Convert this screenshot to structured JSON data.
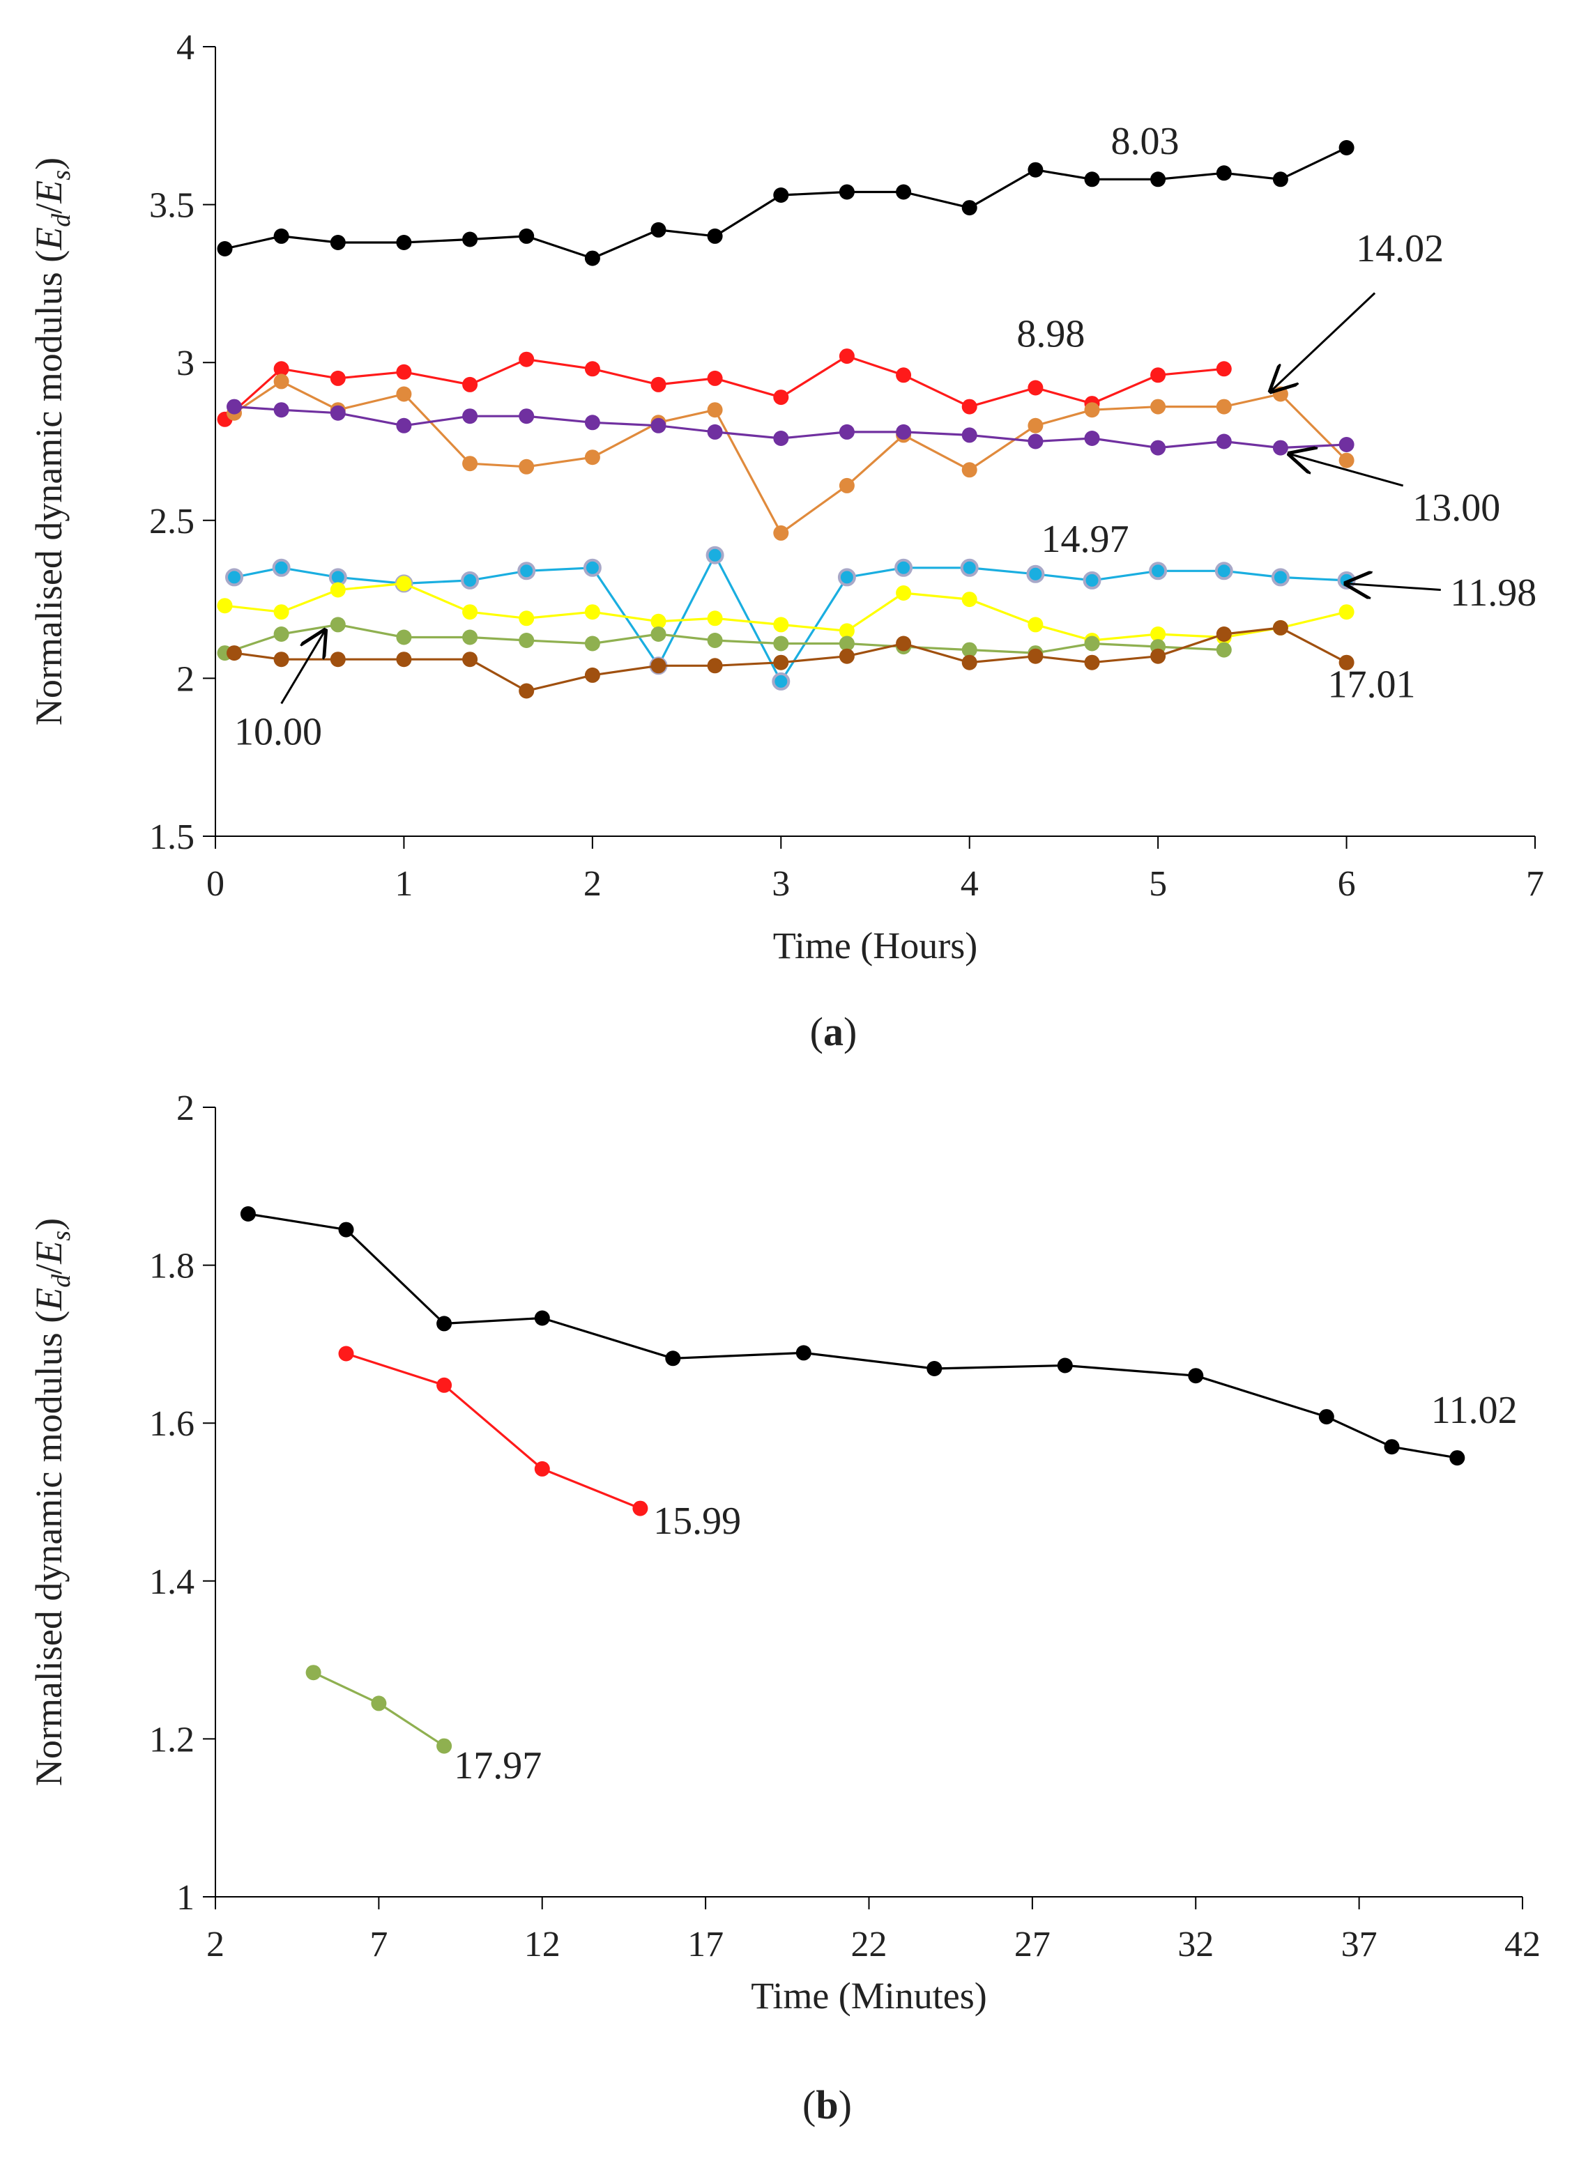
{
  "chart_data": [
    {
      "type": "line",
      "panel_label": "a",
      "xlabel": "Time (Hours)",
      "ylabel": "Normalised dynamic modulus (E_d/E_s)",
      "ylabel_parts": [
        "Normalised dynamic modulus (",
        "E",
        "d",
        "/",
        "E",
        "s",
        ")"
      ],
      "xlim": [
        0,
        7
      ],
      "ylim": [
        1.5,
        4
      ],
      "xticks": [
        0,
        1,
        2,
        3,
        4,
        5,
        6,
        7
      ],
      "yticks": [
        1.5,
        2,
        2.5,
        3,
        3.5,
        4
      ],
      "yticklabels": [
        "1.5",
        "2",
        "2.5",
        "3",
        "3.5",
        "4"
      ],
      "xticklabels": [
        "0",
        "1",
        "2",
        "3",
        "4",
        "5",
        "6",
        "7"
      ],
      "series": [
        {
          "name": "8.03",
          "color": "#000000",
          "x": [
            0.05,
            0.35,
            0.65,
            1.0,
            1.35,
            1.65,
            2.0,
            2.35,
            2.65,
            3.0,
            3.35,
            3.65,
            4.0,
            4.35,
            4.65,
            5.0,
            5.35,
            5.65,
            6.0
          ],
          "values": [
            3.36,
            3.4,
            3.38,
            3.38,
            3.39,
            3.4,
            3.33,
            3.42,
            3.4,
            3.53,
            3.54,
            3.54,
            3.49,
            3.61,
            3.58,
            3.58,
            3.6,
            3.58,
            3.68
          ]
        },
        {
          "name": "8.98",
          "color": "#ff1a1a",
          "x": [
            0.05,
            0.35,
            0.65,
            1.0,
            1.35,
            1.65,
            2.0,
            2.35,
            2.65,
            3.0,
            3.35,
            3.65,
            4.0,
            4.35,
            4.65,
            5.0,
            5.35
          ],
          "values": [
            2.82,
            2.98,
            2.95,
            2.97,
            2.93,
            3.01,
            2.98,
            2.93,
            2.95,
            2.89,
            3.02,
            2.96,
            2.86,
            2.92,
            2.87,
            2.96,
            2.98
          ]
        },
        {
          "name": "14.02",
          "color": "#e08a3c",
          "x": [
            0.1,
            0.35,
            0.65,
            1.0,
            1.35,
            1.65,
            2.0,
            2.35,
            2.65,
            3.0,
            3.35,
            3.65,
            4.0,
            4.35,
            4.65,
            5.0,
            5.35,
            5.65,
            6.0
          ],
          "values": [
            2.84,
            2.94,
            2.85,
            2.9,
            2.68,
            2.67,
            2.7,
            2.81,
            2.85,
            2.46,
            2.61,
            2.77,
            2.66,
            2.8,
            2.85,
            2.86,
            2.86,
            2.9,
            2.69
          ]
        },
        {
          "name": "13.00",
          "color": "#7030a0",
          "x": [
            0.1,
            0.35,
            0.65,
            1.0,
            1.35,
            1.65,
            2.0,
            2.35,
            2.65,
            3.0,
            3.35,
            3.65,
            4.0,
            4.35,
            4.65,
            5.0,
            5.35,
            5.65,
            6.0
          ],
          "values": [
            2.86,
            2.85,
            2.84,
            2.8,
            2.83,
            2.83,
            2.81,
            2.8,
            2.78,
            2.76,
            2.78,
            2.78,
            2.77,
            2.75,
            2.76,
            2.73,
            2.75,
            2.73,
            2.74
          ]
        },
        {
          "name": "14.97",
          "color": "#1aaee0",
          "marker_edge": "#a8a8c8",
          "x": [
            0.1,
            0.35,
            0.65,
            1.0,
            1.35,
            1.65,
            2.0,
            2.35,
            2.65,
            3.0,
            3.35,
            3.65,
            4.0,
            4.35,
            4.65,
            5.0,
            5.35,
            5.65,
            6.0
          ],
          "values": [
            2.32,
            2.35,
            2.32,
            2.3,
            2.31,
            2.34,
            2.35,
            2.04,
            2.39,
            1.99,
            2.32,
            2.35,
            2.35,
            2.33,
            2.31,
            2.34,
            2.34,
            2.32,
            2.31
          ]
        },
        {
          "name": "11.98",
          "color": "#ffff00",
          "x": [
            0.05,
            0.35,
            0.65,
            1.0,
            1.35,
            1.65,
            2.0,
            2.35,
            2.65,
            3.0,
            3.35,
            3.65,
            4.0,
            4.35,
            4.65,
            5.0,
            5.35,
            5.65,
            6.0
          ],
          "values": [
            2.23,
            2.21,
            2.28,
            2.3,
            2.21,
            2.19,
            2.21,
            2.18,
            2.19,
            2.17,
            2.15,
            2.27,
            2.25,
            2.17,
            2.12,
            2.14,
            2.13,
            2.16,
            2.21
          ]
        },
        {
          "name": "10.00",
          "color": "#8fb050",
          "x": [
            0.05,
            0.35,
            0.65,
            1.0,
            1.35,
            1.65,
            2.0,
            2.35,
            2.65,
            3.0,
            3.35,
            3.65,
            4.0,
            4.35,
            4.65,
            5.0,
            5.35
          ],
          "values": [
            2.08,
            2.14,
            2.17,
            2.13,
            2.13,
            2.12,
            2.11,
            2.14,
            2.12,
            2.11,
            2.11,
            2.1,
            2.09,
            2.08,
            2.11,
            2.1,
            2.09
          ]
        },
        {
          "name": "17.01",
          "color": "#a0500f",
          "x": [
            0.1,
            0.35,
            0.65,
            1.0,
            1.35,
            1.65,
            2.0,
            2.35,
            2.65,
            3.0,
            3.35,
            3.65,
            4.0,
            4.35,
            4.65,
            5.0,
            5.35,
            5.65,
            6.0
          ],
          "values": [
            2.08,
            2.06,
            2.06,
            2.06,
            2.06,
            1.96,
            2.01,
            2.04,
            2.04,
            2.05,
            2.07,
            2.11,
            2.05,
            2.07,
            2.05,
            2.07,
            2.14,
            2.16,
            2.05
          ]
        }
      ],
      "annotations": [
        {
          "text": "8.03",
          "x": 4.75,
          "y": 3.66
        },
        {
          "text": "8.98",
          "x": 4.25,
          "y": 3.05
        },
        {
          "text": "14.02",
          "x": 6.05,
          "y": 3.32
        },
        {
          "text": "13.00",
          "x": 6.35,
          "y": 2.5
        },
        {
          "text": "14.97",
          "x": 4.38,
          "y": 2.4
        },
        {
          "text": "11.98",
          "x": 6.55,
          "y": 2.23
        },
        {
          "text": "10.00",
          "x": 0.1,
          "y": 1.79
        },
        {
          "text": "17.01",
          "x": 5.9,
          "y": 1.94
        }
      ],
      "arrows": [
        {
          "label": "14.02",
          "from": [
            6.15,
            3.22
          ],
          "to": [
            5.6,
            2.91
          ]
        },
        {
          "label": "13.00",
          "from": [
            6.3,
            2.61
          ],
          "to": [
            5.7,
            2.71
          ]
        },
        {
          "label": "11.98",
          "from": [
            6.5,
            2.28
          ],
          "to": [
            6.0,
            2.3
          ]
        },
        {
          "label": "10.00",
          "from": [
            0.35,
            1.92
          ],
          "to": [
            0.58,
            2.15
          ]
        }
      ]
    },
    {
      "type": "line",
      "panel_label": "b",
      "xlabel": "Time (Minutes)",
      "ylabel": "Normalised dynamic modulus (E_d/E_s)",
      "ylabel_parts": [
        "Normalised dynamic modulus (",
        "E",
        "d",
        "/",
        "E",
        "s",
        ")"
      ],
      "xlim": [
        2,
        42
      ],
      "ylim": [
        1,
        2
      ],
      "xticks": [
        2,
        7,
        12,
        17,
        22,
        27,
        32,
        37,
        42
      ],
      "yticks": [
        1,
        1.2,
        1.4,
        1.6,
        1.8,
        2
      ],
      "yticklabels": [
        "1",
        "1.2",
        "1.4",
        "1.6",
        "1.8",
        "2"
      ],
      "xticklabels": [
        "2",
        "7",
        "12",
        "17",
        "22",
        "27",
        "32",
        "37",
        "42"
      ],
      "series": [
        {
          "name": "11.02",
          "color": "#000000",
          "x": [
            3,
            6,
            9,
            12,
            16,
            20,
            24,
            28,
            32,
            36,
            38,
            40
          ],
          "values": [
            1.865,
            1.845,
            1.726,
            1.733,
            1.682,
            1.689,
            1.669,
            1.673,
            1.66,
            1.608,
            1.57,
            1.556
          ]
        },
        {
          "name": "15.99",
          "color": "#ff1a1a",
          "x": [
            6,
            9,
            12,
            15
          ],
          "values": [
            1.688,
            1.648,
            1.542,
            1.492
          ]
        },
        {
          "name": "17.97",
          "color": "#8fb050",
          "x": [
            5,
            7,
            9
          ],
          "values": [
            1.284,
            1.245,
            1.191
          ]
        }
      ],
      "annotations": [
        {
          "text": "11.02",
          "x": 39.2,
          "y": 1.6
        },
        {
          "text": "15.99",
          "x": 15.4,
          "y": 1.46
        },
        {
          "text": "17.97",
          "x": 9.3,
          "y": 1.15
        }
      ],
      "arrows": []
    }
  ]
}
